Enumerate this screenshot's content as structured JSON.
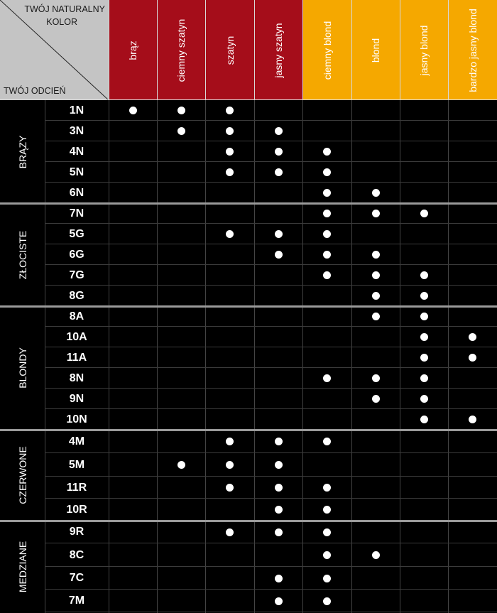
{
  "corner": {
    "line1": "TWÓJ NATURALNY",
    "line2": "KOLOR",
    "line3": "TWÓJ ODCIEŃ"
  },
  "colors": {
    "red": "#a50d1a",
    "amber": "#f5a800",
    "header_gray": "#c4c4c4",
    "dot": "#ffffff",
    "background": "#000000"
  },
  "columns": [
    {
      "label": "brąz",
      "tone": "red"
    },
    {
      "label": "ciemny szatyn",
      "tone": "red"
    },
    {
      "label": "szatyn",
      "tone": "red"
    },
    {
      "label": "jasny szatyn",
      "tone": "red"
    },
    {
      "label": "ciemny blond",
      "tone": "amber"
    },
    {
      "label": "blond",
      "tone": "amber"
    },
    {
      "label": "jasny blond",
      "tone": "amber"
    },
    {
      "label": "bardzo jasny blond",
      "tone": "amber"
    }
  ],
  "groups": [
    {
      "name": "BRĄZY",
      "rows": [
        {
          "shade": "1N",
          "marks": [
            0,
            1,
            2
          ]
        },
        {
          "shade": "3N",
          "marks": [
            1,
            2,
            3
          ]
        },
        {
          "shade": "4N",
          "marks": [
            2,
            3,
            4
          ]
        },
        {
          "shade": "5N",
          "marks": [
            2,
            3,
            4
          ]
        },
        {
          "shade": "6N",
          "marks": [
            4,
            5
          ]
        }
      ]
    },
    {
      "name": "ZŁOCISTE",
      "rows": [
        {
          "shade": "7N",
          "marks": [
            4,
            5,
            6
          ]
        },
        {
          "shade": "5G",
          "marks": [
            2,
            3,
            4
          ]
        },
        {
          "shade": "6G",
          "marks": [
            3,
            4,
            5
          ]
        },
        {
          "shade": "7G",
          "marks": [
            4,
            5,
            6
          ]
        },
        {
          "shade": "8G",
          "marks": [
            5,
            6
          ]
        }
      ]
    },
    {
      "name": "BLONDY",
      "rows": [
        {
          "shade": "8A",
          "marks": [
            5,
            6
          ]
        },
        {
          "shade": "10A",
          "marks": [
            6,
            7
          ]
        },
        {
          "shade": "11A",
          "marks": [
            6,
            7
          ]
        },
        {
          "shade": "8N",
          "marks": [
            4,
            5,
            6
          ]
        },
        {
          "shade": "9N",
          "marks": [
            5,
            6
          ]
        },
        {
          "shade": "10N",
          "marks": [
            6,
            7
          ]
        }
      ]
    },
    {
      "name": "CZERWONE",
      "rows": [
        {
          "shade": "4M",
          "marks": [
            2,
            3,
            4
          ]
        },
        {
          "shade": "5M",
          "marks": [
            1,
            2,
            3
          ]
        },
        {
          "shade": "11R",
          "marks": [
            2,
            3,
            4
          ]
        },
        {
          "shade": "10R",
          "marks": [
            3,
            4
          ]
        }
      ]
    },
    {
      "name": "MEDZIANE",
      "rows": [
        {
          "shade": "9R",
          "marks": [
            2,
            3,
            4
          ]
        },
        {
          "shade": "8C",
          "marks": [
            4,
            5
          ]
        },
        {
          "shade": "7C",
          "marks": [
            3,
            4
          ]
        },
        {
          "shade": "7M",
          "marks": [
            3,
            4
          ]
        }
      ]
    }
  ]
}
